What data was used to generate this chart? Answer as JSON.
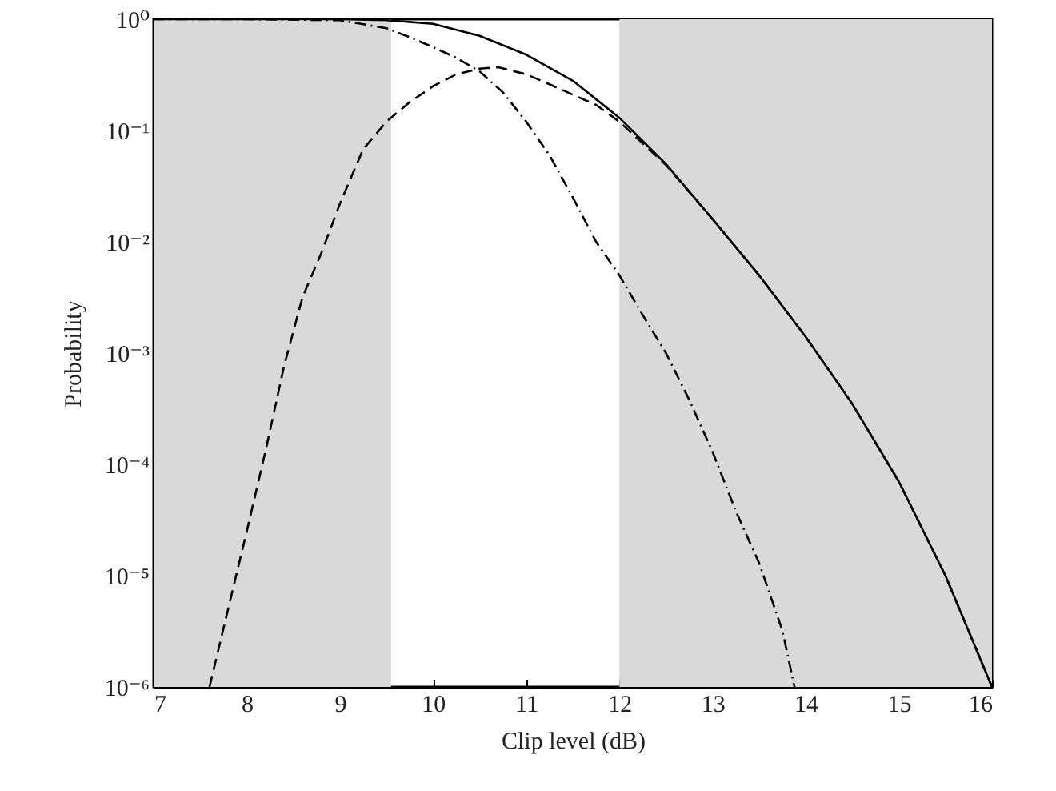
{
  "chart_data": {
    "type": "line",
    "xlabel": "Clip level (dB)",
    "ylabel": "Probability",
    "log": "y",
    "xlim": [
      7,
      16
    ],
    "xticks": [
      7,
      8,
      9,
      10,
      11,
      12,
      13,
      14,
      15,
      16
    ],
    "ylim": [
      1e-06,
      1
    ],
    "yticks": [
      {
        "value": 1,
        "label": "10⁰"
      },
      {
        "value": 0.1,
        "label": "10⁻¹"
      },
      {
        "value": 0.01,
        "label": "10⁻²"
      },
      {
        "value": 0.001,
        "label": "10⁻³"
      },
      {
        "value": 0.0001,
        "label": "10⁻⁴"
      },
      {
        "value": 1e-05,
        "label": "10⁻⁵"
      },
      {
        "value": 1e-06,
        "label": "10⁻⁶"
      }
    ],
    "grid": false,
    "bands": [
      {
        "axis": "x",
        "from": 7,
        "to": 9.55,
        "color": "#d9d9d9"
      },
      {
        "axis": "x",
        "from": 12,
        "to": 16,
        "color": "#d9d9d9"
      }
    ],
    "series": [
      {
        "color": "#000000",
        "line_style": "solid",
        "x": [
          7,
          8,
          9,
          9.5,
          10,
          10.5,
          11,
          11.5,
          12,
          12.5,
          13,
          13.5,
          14,
          14.5,
          15,
          15.5,
          16
        ],
        "values": [
          1,
          1,
          1,
          0.98,
          0.91,
          0.71,
          0.48,
          0.28,
          0.13,
          0.05,
          0.016,
          0.005,
          0.0014,
          0.00035,
          7e-05,
          1e-05,
          1e-06
        ]
      },
      {
        "color": "#000000",
        "line_style": "dashed",
        "x": [
          7.6,
          7.8,
          8,
          8.2,
          8.4,
          8.6,
          8.8,
          9,
          9.25,
          9.5,
          9.75,
          10,
          10.25,
          10.5,
          10.7,
          11,
          11.25,
          11.5,
          11.75,
          12,
          12.5,
          13,
          13.5,
          14,
          14.5,
          15,
          15.5,
          16
        ],
        "values": [
          1e-06,
          5e-06,
          2.5e-05,
          0.00013,
          0.00076,
          0.0032,
          0.0079,
          0.022,
          0.068,
          0.12,
          0.18,
          0.25,
          0.32,
          0.36,
          0.37,
          0.32,
          0.26,
          0.21,
          0.17,
          0.12,
          0.049,
          0.016,
          0.005,
          0.0014,
          0.00035,
          7e-05,
          1e-05,
          1e-06
        ]
      },
      {
        "color": "#000000",
        "line_style": "dashdot",
        "x": [
          7,
          8,
          9,
          9.5,
          9.75,
          10,
          10.25,
          10.5,
          10.75,
          11,
          11.25,
          11.5,
          11.75,
          12,
          12.25,
          12.5,
          12.75,
          13,
          13.25,
          13.5,
          13.75,
          13.88
        ],
        "values": [
          1,
          1,
          0.98,
          0.83,
          0.69,
          0.56,
          0.45,
          0.34,
          0.22,
          0.12,
          0.06,
          0.025,
          0.01,
          0.005,
          0.0022,
          0.001,
          0.00038,
          0.00013,
          3.8e-05,
          1.3e-05,
          3.2e-06,
          1e-06
        ]
      }
    ]
  }
}
